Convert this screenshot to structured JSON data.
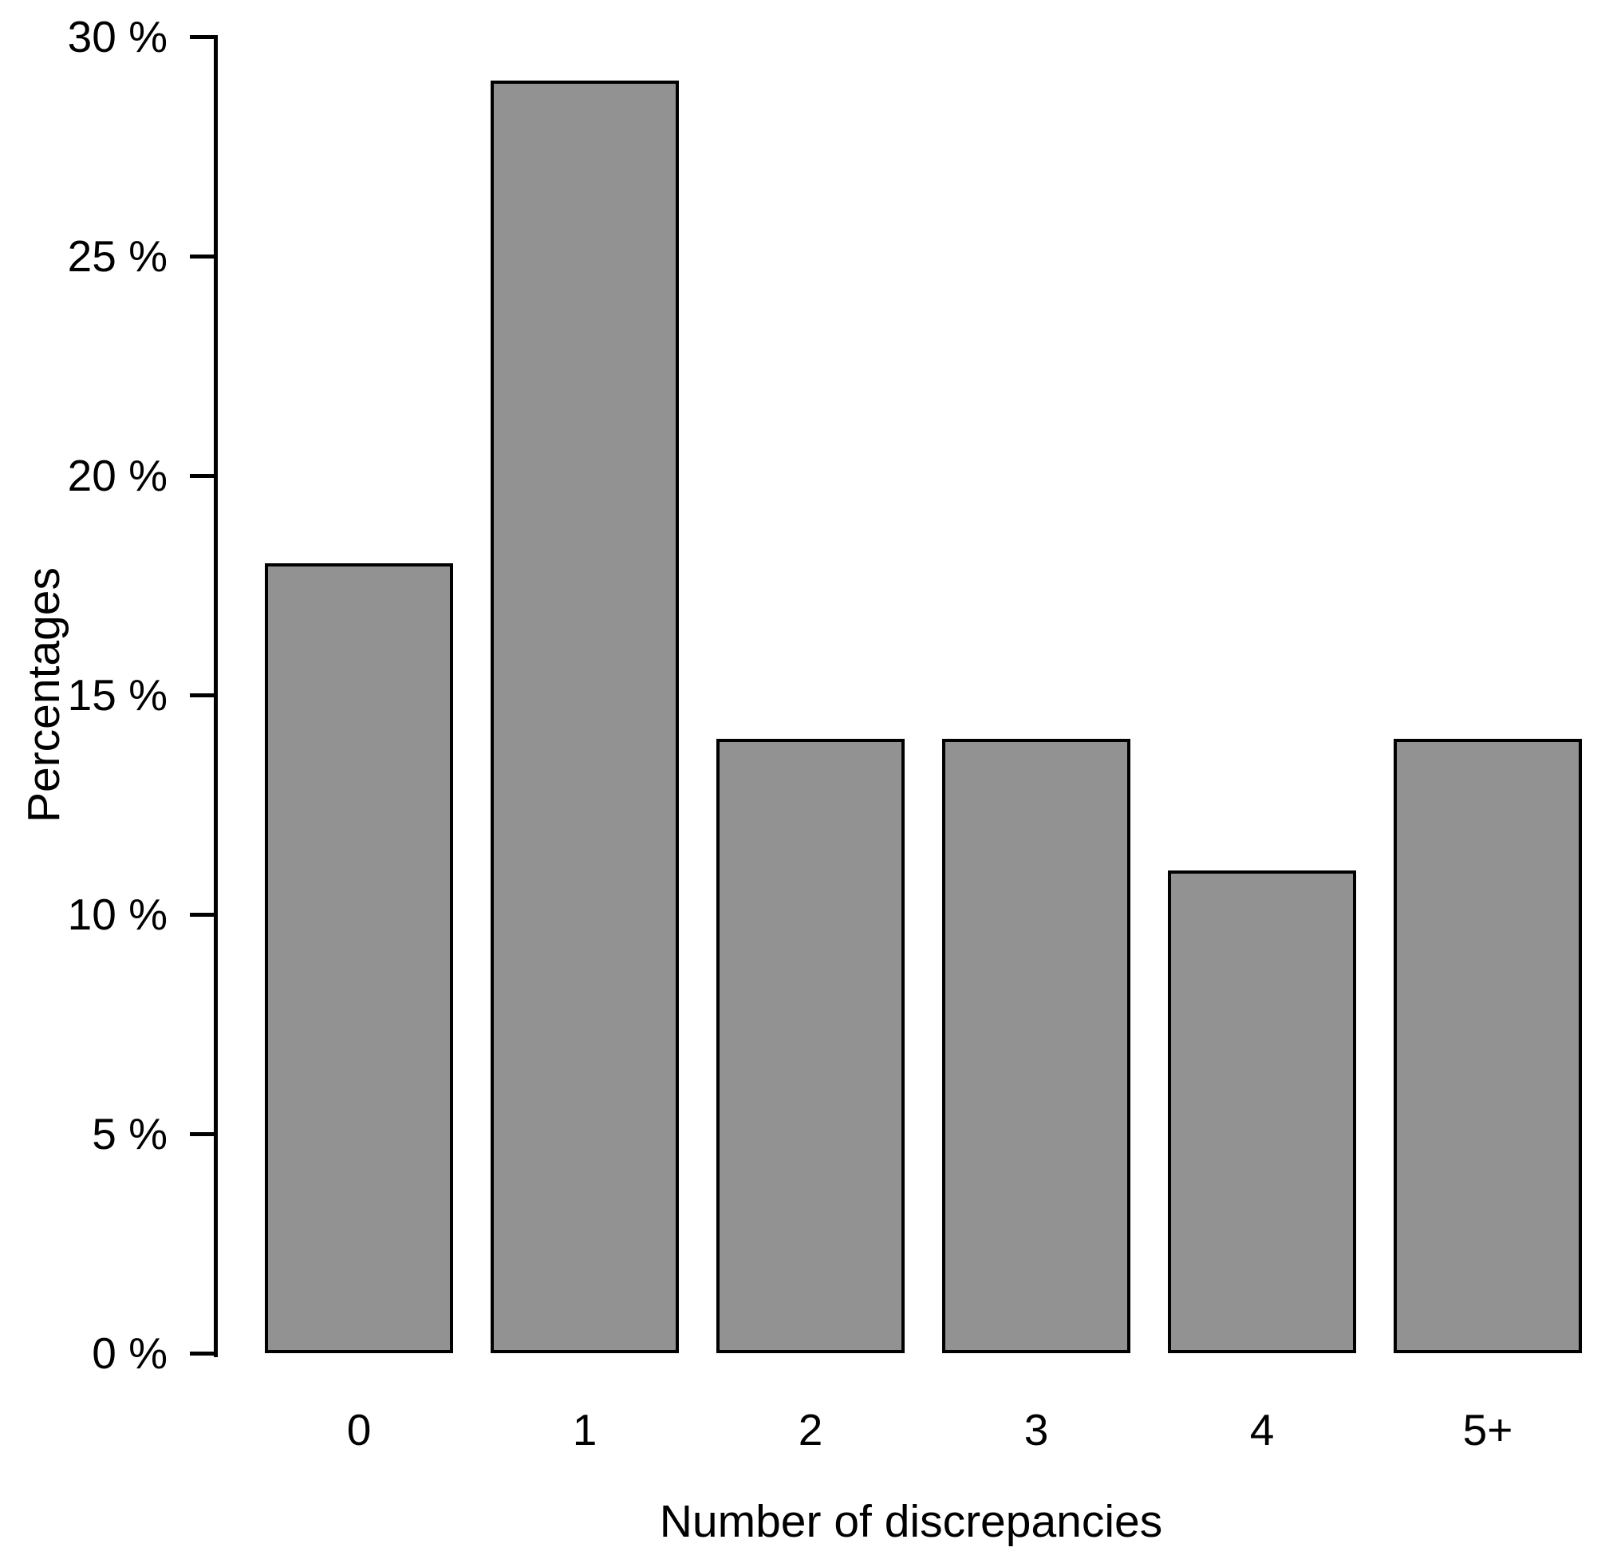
{
  "chart_data": {
    "type": "bar",
    "title": "",
    "xlabel": "Number of discrepancies",
    "ylabel": "Percentages",
    "categories": [
      "0",
      "1",
      "2",
      "3",
      "4",
      "5+"
    ],
    "values": [
      18,
      29,
      14,
      14,
      11,
      14
    ],
    "unit": "%",
    "ylim": [
      0,
      30
    ],
    "ytick_step": 5,
    "ytick_labels": [
      "0 %",
      "5 %",
      "10 %",
      "15 %",
      "20 %",
      "25 %",
      "30 %"
    ],
    "grid": false,
    "legend": null,
    "bar_fill_color": "#929292",
    "bar_border_color": "#000000",
    "axis_color": "#000000",
    "text_color": "#000000",
    "background_color": "#ffffff"
  }
}
